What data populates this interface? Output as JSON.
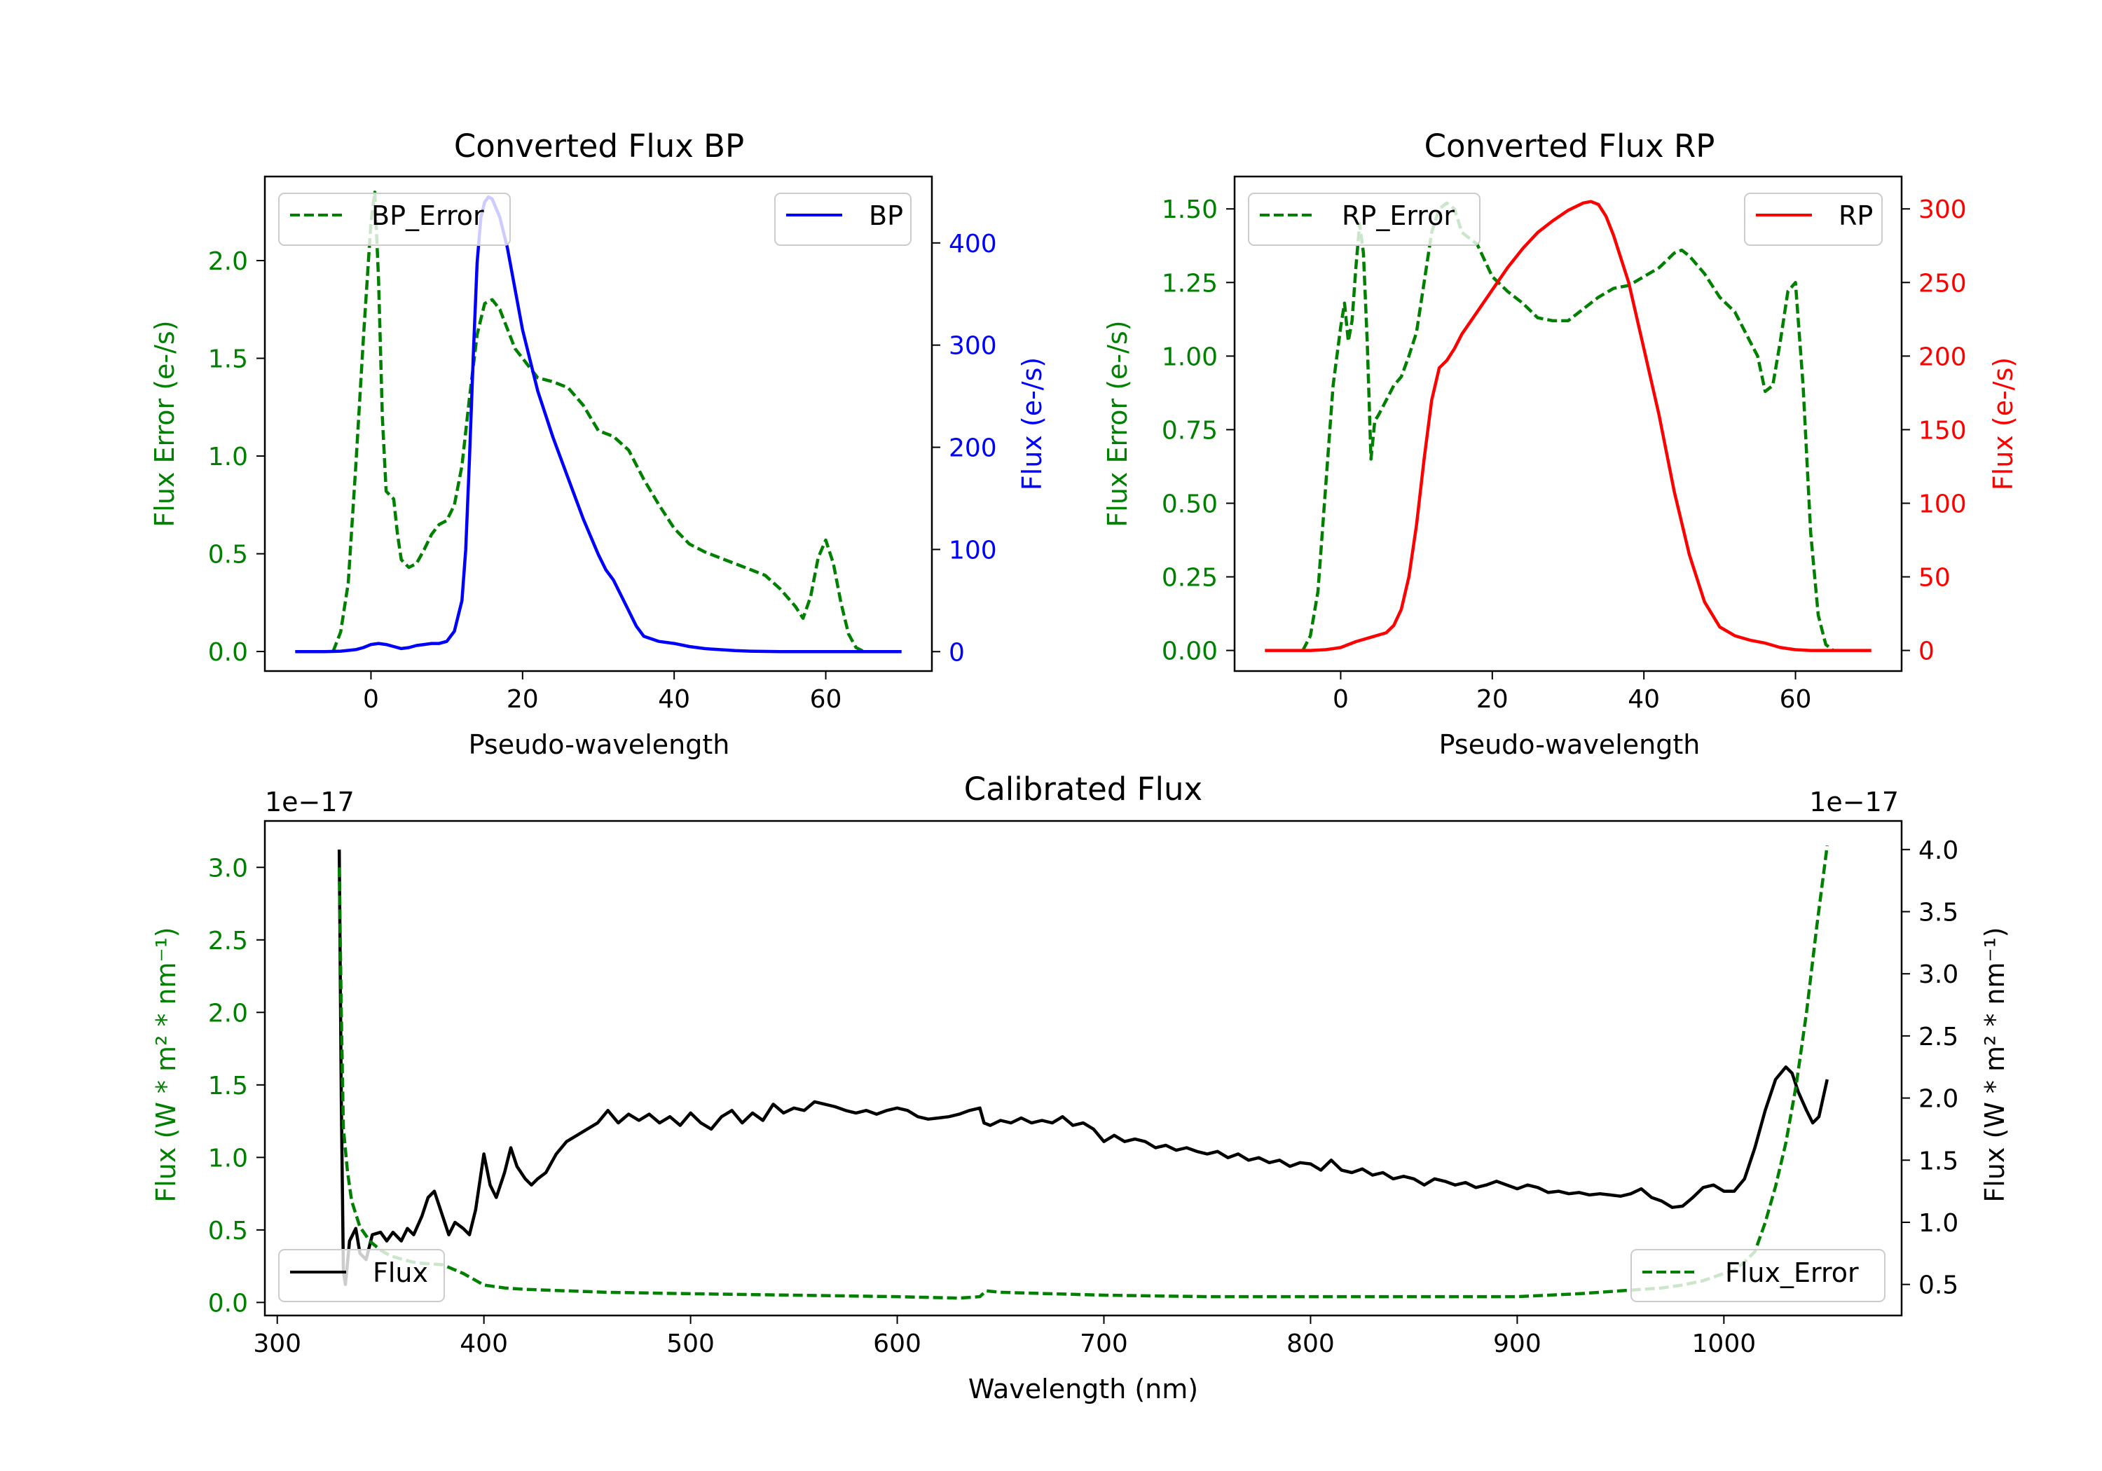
{
  "colors": {
    "blue": "#0000ff",
    "red": "#ff0000",
    "green": "#008000",
    "black": "#000000",
    "axis": "#000000",
    "legend_edge": "#cccccc"
  },
  "chart_data": [
    {
      "id": "bp",
      "type": "line",
      "title": "Converted Flux BP",
      "xlabel": "Pseudo-wavelength",
      "ylabel_left": "Flux Error (e-/s)",
      "ylabel_right": "Flux (e-/s)",
      "xlim": [
        -14,
        74
      ],
      "ylim_left": [
        -0.1,
        2.43
      ],
      "ylim_right": [
        -19,
        465
      ],
      "xticks": [
        0,
        20,
        40,
        60
      ],
      "xtick_labels": [
        "0",
        "20",
        "40",
        "60"
      ],
      "yticks_left": [
        0.0,
        0.5,
        1.0,
        1.5,
        2.0
      ],
      "ytick_labels_left": [
        "0.0",
        "0.5",
        "1.0",
        "1.5",
        "2.0"
      ],
      "yticks_right": [
        0,
        100,
        200,
        300,
        400
      ],
      "ytick_labels_right": [
        "0",
        "100",
        "200",
        "300",
        "400"
      ],
      "left_tick_color": "green",
      "right_tick_color": "blue",
      "legend_left": {
        "label": "BP_Error",
        "style": "dashed",
        "color": "green",
        "position": "upper left"
      },
      "legend_right": {
        "label": "BP",
        "style": "solid",
        "color": "blue",
        "position": "upper right"
      },
      "series": [
        {
          "name": "BP_Error",
          "axis": "left",
          "color": "green",
          "style": "dashed",
          "x": [
            -5,
            -4,
            -3,
            -2,
            -1,
            0,
            0.5,
            1,
            1.5,
            2,
            2.5,
            3,
            3.5,
            4,
            5,
            6,
            7,
            8,
            9,
            10,
            11,
            12,
            13,
            14,
            15,
            16,
            17,
            18,
            19,
            20,
            22,
            24,
            26,
            28,
            30,
            32,
            34,
            36,
            38,
            40,
            42,
            44,
            46,
            48,
            50,
            52,
            54,
            56,
            57,
            58,
            59,
            60,
            61,
            62,
            63,
            64,
            65
          ],
          "y": [
            0.0,
            0.1,
            0.35,
            0.95,
            1.6,
            2.2,
            2.35,
            1.9,
            1.2,
            0.82,
            0.8,
            0.78,
            0.6,
            0.47,
            0.43,
            0.45,
            0.52,
            0.6,
            0.65,
            0.67,
            0.75,
            0.95,
            1.3,
            1.62,
            1.78,
            1.8,
            1.75,
            1.65,
            1.55,
            1.5,
            1.4,
            1.38,
            1.35,
            1.26,
            1.13,
            1.1,
            1.03,
            0.88,
            0.75,
            0.63,
            0.55,
            0.51,
            0.48,
            0.45,
            0.42,
            0.39,
            0.32,
            0.23,
            0.17,
            0.28,
            0.48,
            0.57,
            0.45,
            0.25,
            0.09,
            0.02,
            0.0
          ]
        },
        {
          "name": "BP",
          "axis": "right",
          "color": "blue",
          "style": "solid",
          "x": [
            -10,
            -6,
            -4,
            -2,
            -1,
            0,
            1,
            2,
            3,
            4,
            5,
            6,
            7,
            8,
            9,
            10,
            11,
            12,
            12.5,
            13,
            13.5,
            14,
            14.5,
            15,
            15.5,
            16,
            17,
            18,
            19,
            20,
            22,
            24,
            26,
            28,
            30,
            31,
            32,
            33,
            34,
            35,
            36,
            38,
            40,
            42,
            44,
            46,
            48,
            50,
            54,
            58,
            62,
            66,
            70
          ],
          "y": [
            0,
            0,
            0.5,
            2,
            4,
            7,
            8,
            7,
            5,
            3,
            4,
            6,
            7,
            8,
            8,
            10,
            20,
            50,
            100,
            190,
            290,
            380,
            425,
            440,
            445,
            443,
            425,
            395,
            355,
            315,
            255,
            210,
            170,
            130,
            95,
            80,
            70,
            55,
            40,
            25,
            15,
            10,
            8,
            5,
            3,
            2,
            1,
            0.5,
            0,
            0,
            0,
            0,
            0
          ]
        }
      ]
    },
    {
      "id": "rp",
      "type": "line",
      "title": "Converted Flux RP",
      "xlabel": "Pseudo-wavelength",
      "ylabel_left": "Flux Error (e-/s)",
      "ylabel_right": "Flux (e-/s)",
      "xlim": [
        -14,
        74
      ],
      "ylim_left": [
        -0.07,
        1.61
      ],
      "ylim_right": [
        -14,
        322
      ],
      "xticks": [
        0,
        20,
        40,
        60
      ],
      "xtick_labels": [
        "0",
        "20",
        "40",
        "60"
      ],
      "yticks_left": [
        0.0,
        0.25,
        0.5,
        0.75,
        1.0,
        1.25,
        1.5
      ],
      "ytick_labels_left": [
        "0.00",
        "0.25",
        "0.50",
        "0.75",
        "1.00",
        "1.25",
        "1.50"
      ],
      "yticks_right": [
        0,
        50,
        100,
        150,
        200,
        250,
        300
      ],
      "ytick_labels_right": [
        "0",
        "50",
        "100",
        "150",
        "200",
        "250",
        "300"
      ],
      "left_tick_color": "green",
      "right_tick_color": "red",
      "legend_left": {
        "label": "RP_Error",
        "style": "dashed",
        "color": "green",
        "position": "upper left"
      },
      "legend_right": {
        "label": "RP",
        "style": "solid",
        "color": "red",
        "position": "upper right"
      },
      "series": [
        {
          "name": "RP_Error",
          "axis": "left",
          "color": "green",
          "style": "dashed",
          "x": [
            -5,
            -4,
            -3,
            -2,
            -1,
            0,
            0.5,
            1,
            1.5,
            2,
            2.5,
            3,
            3.5,
            4,
            4.5,
            5,
            6,
            7,
            8,
            9,
            10,
            11,
            12,
            13,
            14,
            15,
            16,
            18,
            20,
            22,
            24,
            26,
            28,
            30,
            32,
            34,
            36,
            38,
            40,
            42,
            44,
            45,
            46,
            48,
            50,
            52,
            54,
            55,
            56,
            57,
            58,
            59,
            60,
            61,
            62,
            63,
            64,
            65
          ],
          "y": [
            0.0,
            0.05,
            0.2,
            0.55,
            0.9,
            1.1,
            1.18,
            1.05,
            1.12,
            1.3,
            1.45,
            1.35,
            1.05,
            0.65,
            0.78,
            0.8,
            0.85,
            0.9,
            0.93,
            1.0,
            1.08,
            1.25,
            1.42,
            1.5,
            1.52,
            1.5,
            1.42,
            1.38,
            1.27,
            1.22,
            1.18,
            1.13,
            1.12,
            1.12,
            1.16,
            1.2,
            1.23,
            1.24,
            1.27,
            1.3,
            1.35,
            1.36,
            1.34,
            1.28,
            1.2,
            1.15,
            1.05,
            1.0,
            0.88,
            0.9,
            1.05,
            1.22,
            1.25,
            0.9,
            0.4,
            0.12,
            0.02,
            0.0
          ]
        },
        {
          "name": "RP",
          "axis": "right",
          "color": "red",
          "style": "solid",
          "x": [
            -10,
            -4,
            -2,
            0,
            2,
            4,
            6,
            7,
            8,
            9,
            10,
            11,
            12,
            13,
            14,
            15,
            16,
            18,
            20,
            22,
            24,
            26,
            28,
            30,
            32,
            33,
            34,
            35,
            36,
            38,
            40,
            42,
            44,
            46,
            48,
            50,
            52,
            54,
            56,
            58,
            60,
            62,
            66,
            70
          ],
          "y": [
            0,
            0,
            0.5,
            2,
            6,
            9,
            12,
            17,
            28,
            50,
            85,
            130,
            170,
            192,
            197,
            205,
            215,
            230,
            245,
            260,
            273,
            284,
            292,
            299,
            304,
            305,
            303,
            295,
            282,
            250,
            205,
            160,
            108,
            65,
            33,
            16,
            10,
            7,
            5,
            2,
            0.5,
            0,
            0,
            0
          ]
        }
      ]
    },
    {
      "id": "cal",
      "type": "line",
      "title": "Calibrated Flux",
      "xlabel": "Wavelength (nm)",
      "ylabel_left": "Flux (W * m² * nm⁻¹)",
      "ylabel_right": "Flux (W * m² * nm⁻¹)",
      "offset_left": "1e−17",
      "offset_right": "1e−17",
      "xlim": [
        294,
        1086
      ],
      "ylim_left": [
        -0.09,
        3.32
      ],
      "ylim_right": [
        0.25,
        4.23
      ],
      "xticks": [
        300,
        400,
        500,
        600,
        700,
        800,
        900,
        1000
      ],
      "xtick_labels": [
        "300",
        "400",
        "500",
        "600",
        "700",
        "800",
        "900",
        "1000"
      ],
      "yticks_left": [
        0.0,
        0.5,
        1.0,
        1.5,
        2.0,
        2.5,
        3.0
      ],
      "ytick_labels_left": [
        "0.0",
        "0.5",
        "1.0",
        "1.5",
        "2.0",
        "2.5",
        "3.0"
      ],
      "yticks_right": [
        0.5,
        1.0,
        1.5,
        2.0,
        2.5,
        3.0,
        3.5,
        4.0
      ],
      "ytick_labels_right": [
        "0.5",
        "1.0",
        "1.5",
        "2.0",
        "2.5",
        "3.0",
        "3.5",
        "4.0"
      ],
      "left_tick_color": "green",
      "right_tick_color": "black",
      "legend_left": {
        "label": "Flux",
        "style": "solid",
        "color": "black",
        "position": "lower left"
      },
      "legend_right": {
        "label": "Flux_Error",
        "style": "dashed",
        "color": "green",
        "position": "lower right"
      },
      "series": [
        {
          "name": "Flux",
          "axis": "right",
          "color": "black",
          "style": "solid",
          "x": [
            330,
            331,
            332,
            333,
            335,
            338,
            340,
            343,
            346,
            350,
            353,
            356,
            360,
            363,
            366,
            370,
            373,
            376,
            380,
            383,
            386,
            390,
            393,
            396,
            400,
            403,
            406,
            410,
            413,
            416,
            420,
            423,
            426,
            430,
            435,
            440,
            445,
            450,
            455,
            460,
            465,
            470,
            475,
            480,
            485,
            490,
            495,
            500,
            505,
            510,
            515,
            520,
            525,
            530,
            535,
            540,
            545,
            550,
            555,
            560,
            565,
            570,
            575,
            580,
            585,
            590,
            595,
            600,
            605,
            610,
            615,
            620,
            625,
            630,
            635,
            640,
            642,
            645,
            650,
            655,
            660,
            665,
            670,
            675,
            680,
            685,
            690,
            695,
            700,
            705,
            710,
            715,
            720,
            725,
            730,
            735,
            740,
            745,
            750,
            755,
            760,
            765,
            770,
            775,
            780,
            785,
            790,
            795,
            800,
            805,
            810,
            815,
            820,
            825,
            830,
            835,
            840,
            845,
            850,
            855,
            860,
            865,
            870,
            875,
            880,
            885,
            890,
            895,
            900,
            905,
            910,
            915,
            920,
            925,
            930,
            935,
            940,
            945,
            950,
            955,
            960,
            965,
            970,
            975,
            980,
            985,
            990,
            995,
            1000,
            1005,
            1010,
            1015,
            1020,
            1025,
            1030,
            1033,
            1036,
            1040,
            1043,
            1046,
            1050
          ],
          "y": [
            4.0,
            2.0,
            0.6,
            0.5,
            0.85,
            0.95,
            0.75,
            0.7,
            0.9,
            0.92,
            0.85,
            0.92,
            0.85,
            0.95,
            0.9,
            1.05,
            1.2,
            1.25,
            1.05,
            0.9,
            1.0,
            0.95,
            0.9,
            1.1,
            1.55,
            1.3,
            1.2,
            1.4,
            1.6,
            1.45,
            1.35,
            1.3,
            1.35,
            1.4,
            1.55,
            1.65,
            1.7,
            1.75,
            1.8,
            1.9,
            1.8,
            1.87,
            1.82,
            1.87,
            1.8,
            1.85,
            1.78,
            1.88,
            1.8,
            1.75,
            1.85,
            1.9,
            1.8,
            1.88,
            1.82,
            1.95,
            1.88,
            1.92,
            1.9,
            1.97,
            1.95,
            1.93,
            1.9,
            1.88,
            1.9,
            1.87,
            1.9,
            1.92,
            1.9,
            1.85,
            1.83,
            1.84,
            1.85,
            1.87,
            1.9,
            1.92,
            1.8,
            1.78,
            1.82,
            1.8,
            1.84,
            1.8,
            1.82,
            1.8,
            1.85,
            1.78,
            1.8,
            1.75,
            1.65,
            1.7,
            1.65,
            1.67,
            1.65,
            1.6,
            1.62,
            1.58,
            1.6,
            1.57,
            1.55,
            1.57,
            1.52,
            1.55,
            1.5,
            1.52,
            1.48,
            1.5,
            1.45,
            1.48,
            1.47,
            1.42,
            1.5,
            1.42,
            1.4,
            1.43,
            1.38,
            1.4,
            1.35,
            1.37,
            1.35,
            1.3,
            1.35,
            1.33,
            1.3,
            1.32,
            1.28,
            1.3,
            1.33,
            1.3,
            1.27,
            1.3,
            1.28,
            1.24,
            1.25,
            1.23,
            1.24,
            1.22,
            1.23,
            1.22,
            1.21,
            1.23,
            1.27,
            1.2,
            1.17,
            1.12,
            1.13,
            1.2,
            1.28,
            1.3,
            1.25,
            1.25,
            1.35,
            1.6,
            1.9,
            2.15,
            2.25,
            2.2,
            2.05,
            1.9,
            1.8,
            1.85,
            2.15
          ]
        },
        {
          "name": "Flux_Error",
          "axis": "left",
          "color": "green",
          "style": "dashed",
          "x": [
            330,
            331,
            332,
            334,
            336,
            340,
            345,
            350,
            355,
            360,
            365,
            370,
            380,
            390,
            400,
            410,
            420,
            440,
            460,
            500,
            550,
            600,
            630,
            640,
            643,
            650,
            700,
            750,
            800,
            850,
            900,
            930,
            950,
            970,
            980,
            990,
            1000,
            1005,
            1010,
            1015,
            1020,
            1025,
            1030,
            1035,
            1040,
            1045,
            1050
          ],
          "y": [
            3.0,
            2.0,
            1.2,
            0.9,
            0.7,
            0.52,
            0.42,
            0.36,
            0.32,
            0.3,
            0.28,
            0.27,
            0.26,
            0.2,
            0.12,
            0.1,
            0.09,
            0.08,
            0.07,
            0.06,
            0.05,
            0.04,
            0.03,
            0.04,
            0.08,
            0.07,
            0.05,
            0.04,
            0.04,
            0.04,
            0.04,
            0.06,
            0.08,
            0.1,
            0.12,
            0.15,
            0.2,
            0.22,
            0.28,
            0.35,
            0.55,
            0.8,
            1.1,
            1.5,
            2.0,
            2.6,
            3.15
          ]
        }
      ]
    }
  ]
}
